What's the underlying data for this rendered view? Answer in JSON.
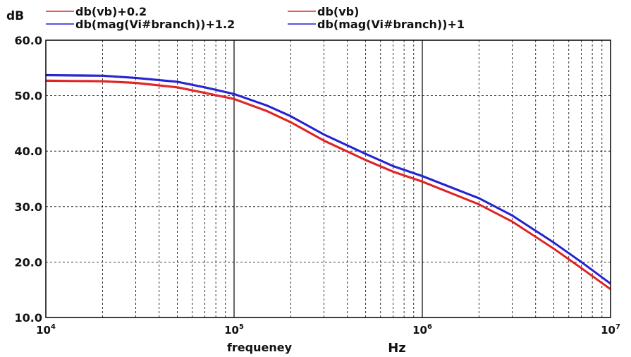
{
  "chart_data": {
    "type": "line",
    "ylabel": "dB",
    "xlabel": "frequeney",
    "xunit": "Hz",
    "xscale": "log",
    "xlim": [
      10000,
      10000000
    ],
    "ylim": [
      10,
      60
    ],
    "x_ticks": [
      {
        "value": 10000,
        "base": "10",
        "exp": "4"
      },
      {
        "value": 100000,
        "base": "10",
        "exp": "5"
      },
      {
        "value": 1000000,
        "base": "10",
        "exp": "6"
      },
      {
        "value": 10000000,
        "base": "10",
        "exp": "7"
      }
    ],
    "y_ticks": [
      {
        "value": 10,
        "label": "10.0"
      },
      {
        "value": 20,
        "label": "20.0"
      },
      {
        "value": 30,
        "label": "30.0"
      },
      {
        "value": 40,
        "label": "40.0"
      },
      {
        "value": 50,
        "label": "50.0"
      },
      {
        "value": 60,
        "label": "60.0"
      }
    ],
    "grid": true,
    "legend_position": "top",
    "x": [
      10000,
      20000,
      30000,
      50000,
      70000,
      100000,
      150000,
      200000,
      300000,
      500000,
      700000,
      1000000,
      2000000,
      3000000,
      5000000,
      7000000,
      10000000
    ],
    "series": [
      {
        "name": "db(vb)+0.2",
        "color": "#e02020",
        "values": [
          52.8,
          52.7,
          52.4,
          51.6,
          50.6,
          49.5,
          47.3,
          45.3,
          42.0,
          38.5,
          36.4,
          34.6,
          30.5,
          27.4,
          22.5,
          19.0,
          15.2
        ]
      },
      {
        "name": "db(vb)",
        "color": "#e02020",
        "values": [
          52.6,
          52.5,
          52.2,
          51.4,
          50.4,
          49.3,
          47.1,
          45.1,
          41.8,
          38.3,
          36.2,
          34.4,
          30.3,
          27.2,
          22.3,
          18.8,
          15.0
        ]
      },
      {
        "name": "db(mag(Vi#branch))+1.2",
        "color": "#2020d0",
        "values": [
          53.8,
          53.7,
          53.3,
          52.6,
          51.6,
          50.4,
          48.3,
          46.4,
          43.1,
          39.6,
          37.4,
          35.6,
          31.6,
          28.5,
          23.6,
          20.1,
          16.2
        ]
      },
      {
        "name": "db(mag(Vi#branch))+1",
        "color": "#2020d0",
        "values": [
          53.6,
          53.5,
          53.1,
          52.4,
          51.4,
          50.2,
          48.1,
          46.2,
          42.9,
          39.4,
          37.2,
          35.4,
          31.4,
          28.3,
          23.4,
          19.9,
          16.0
        ]
      }
    ]
  }
}
